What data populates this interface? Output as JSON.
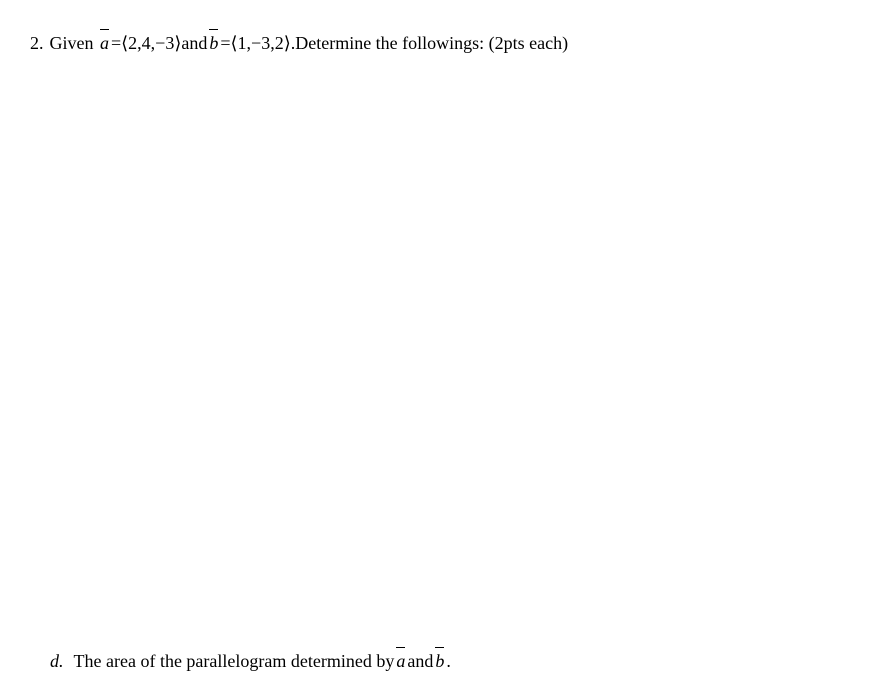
{
  "problem": {
    "number": "2.",
    "given_text": "Given",
    "vec_a_label": "a",
    "equals1": " = ",
    "vec_a_value": "⟨2,4,−3⟩",
    "and_text": " and ",
    "vec_b_label": "b",
    "equals2": " = ",
    "vec_b_value": "⟨1,−3,2⟩",
    "period": ".",
    "determine_text": "  Determine the followings: (2pts each)"
  },
  "subitem": {
    "label": "d.",
    "text_part1": "The area of the parallelogram determined by ",
    "vec_a": "a",
    "and_text": " and ",
    "vec_b": "b",
    "period": " ."
  },
  "style": {
    "background_color": "#ffffff",
    "text_color": "#000000",
    "font_family": "Times New Roman",
    "font_size": 18
  }
}
